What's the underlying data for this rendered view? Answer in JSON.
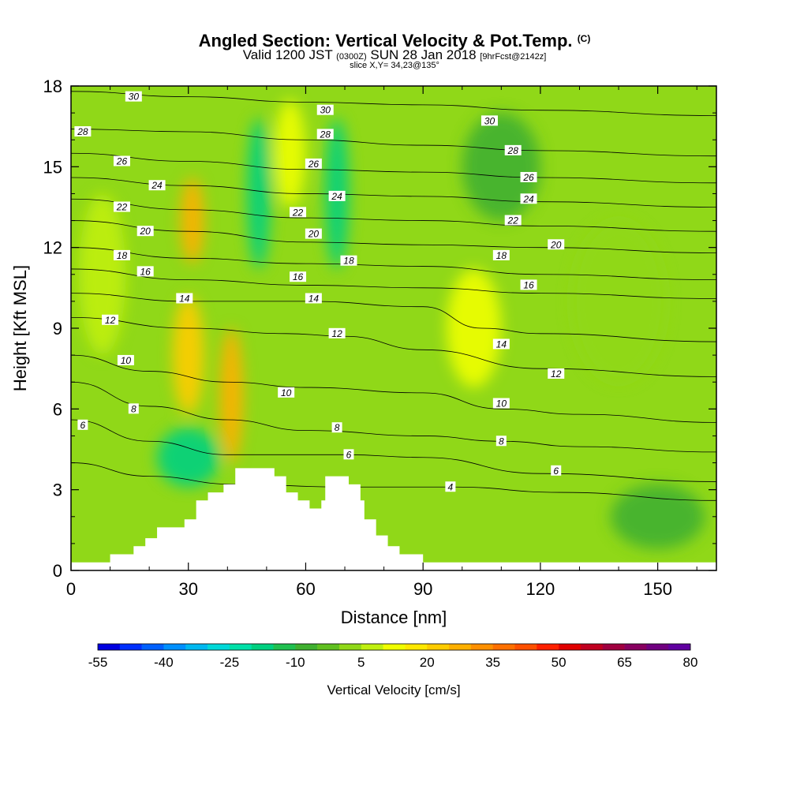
{
  "title": {
    "main": "Angled Section: Vertical Velocity & Pot.Temp.",
    "main_tag": "(C)",
    "valid_prefix": "Valid 1200 JST",
    "valid_z": "(0300Z)",
    "valid_date": "SUN 28 Jan 2018",
    "valid_fcst": "[9hrFcst@2142z]",
    "slice": "slice X,Y= 34,23@135°"
  },
  "chart_data": {
    "type": "heatmap",
    "xlabel": "Distance [nm]",
    "ylabel": "Height [Kft MSL]",
    "xlim": [
      0,
      165
    ],
    "ylim": [
      0,
      18
    ],
    "x_ticks": [
      0,
      30,
      60,
      90,
      120,
      150
    ],
    "y_ticks": [
      0,
      3,
      6,
      9,
      12,
      15,
      18
    ],
    "terrain_nm_kft": [
      [
        0,
        0.3
      ],
      [
        10,
        0.3
      ],
      [
        10,
        0.6
      ],
      [
        16,
        0.6
      ],
      [
        16,
        0.9
      ],
      [
        19,
        0.9
      ],
      [
        19,
        1.2
      ],
      [
        22,
        1.2
      ],
      [
        22,
        1.6
      ],
      [
        29,
        1.6
      ],
      [
        29,
        1.9
      ],
      [
        32,
        1.9
      ],
      [
        32,
        2.6
      ],
      [
        35,
        2.6
      ],
      [
        35,
        2.9
      ],
      [
        39,
        2.9
      ],
      [
        39,
        3.2
      ],
      [
        42,
        3.2
      ],
      [
        42,
        3.8
      ],
      [
        52,
        3.8
      ],
      [
        52,
        3.5
      ],
      [
        55,
        3.5
      ],
      [
        55,
        2.9
      ],
      [
        58,
        2.9
      ],
      [
        58,
        2.6
      ],
      [
        61,
        2.6
      ],
      [
        61,
        2.3
      ],
      [
        64,
        2.3
      ],
      [
        64,
        2.6
      ],
      [
        65,
        2.6
      ],
      [
        65,
        3.5
      ],
      [
        71,
        3.5
      ],
      [
        71,
        3.2
      ],
      [
        74,
        3.2
      ],
      [
        74,
        2.6
      ],
      [
        75,
        2.6
      ],
      [
        75,
        1.9
      ],
      [
        78,
        1.9
      ],
      [
        78,
        1.3
      ],
      [
        81,
        1.3
      ],
      [
        81,
        0.9
      ],
      [
        84,
        0.9
      ],
      [
        84,
        0.6
      ],
      [
        90,
        0.6
      ],
      [
        90,
        0.3
      ],
      [
        165,
        0.3
      ]
    ],
    "velocity_field_cms": [
      {
        "x": 31,
        "y": 13,
        "value": 28
      },
      {
        "x": 30,
        "y": 8,
        "value": 22
      },
      {
        "x": 41,
        "y": 6.5,
        "value": 25
      },
      {
        "x": 56,
        "y": 15.5,
        "value": 12
      },
      {
        "x": 103,
        "y": 9,
        "value": 10
      },
      {
        "x": 48,
        "y": 14,
        "value": -18
      },
      {
        "x": 68,
        "y": 14,
        "value": -20
      },
      {
        "x": 30,
        "y": 4.2,
        "value": -20
      },
      {
        "x": 110,
        "y": 15,
        "value": -8
      },
      {
        "x": 150,
        "y": 2,
        "value": -10
      },
      {
        "x": 8,
        "y": 11,
        "value": 8
      },
      {
        "x": 140,
        "y": 10,
        "value": 4
      }
    ],
    "isentropes_c": [
      {
        "label": "30",
        "points": [
          [
            0,
            17.8
          ],
          [
            30,
            17.6
          ],
          [
            60,
            17.4
          ],
          [
            90,
            17.3
          ],
          [
            120,
            17.1
          ],
          [
            165,
            16.9
          ]
        ]
      },
      {
        "label": "28",
        "points": [
          [
            0,
            16.4
          ],
          [
            30,
            16.3
          ],
          [
            60,
            16.0
          ],
          [
            90,
            15.8
          ],
          [
            120,
            15.6
          ],
          [
            165,
            15.4
          ]
        ]
      },
      {
        "label": "26",
        "points": [
          [
            0,
            15.5
          ],
          [
            30,
            15.2
          ],
          [
            60,
            14.9
          ],
          [
            90,
            14.8
          ],
          [
            120,
            14.6
          ],
          [
            165,
            14.4
          ]
        ]
      },
      {
        "label": "24",
        "points": [
          [
            0,
            14.6
          ],
          [
            30,
            14.3
          ],
          [
            60,
            14.0
          ],
          [
            90,
            13.9
          ],
          [
            120,
            13.7
          ],
          [
            165,
            13.5
          ]
        ]
      },
      {
        "label": "22",
        "points": [
          [
            0,
            13.8
          ],
          [
            30,
            13.4
          ],
          [
            60,
            13.1
          ],
          [
            90,
            13.0
          ],
          [
            120,
            12.8
          ],
          [
            165,
            12.6
          ]
        ]
      },
      {
        "label": "20",
        "points": [
          [
            0,
            13.0
          ],
          [
            30,
            12.6
          ],
          [
            60,
            12.2
          ],
          [
            90,
            12.1
          ],
          [
            120,
            12.0
          ],
          [
            165,
            11.8
          ]
        ]
      },
      {
        "label": "18",
        "points": [
          [
            0,
            12.0
          ],
          [
            30,
            11.6
          ],
          [
            60,
            11.4
          ],
          [
            90,
            11.3
          ],
          [
            120,
            11.0
          ],
          [
            165,
            10.8
          ]
        ]
      },
      {
        "label": "16",
        "points": [
          [
            0,
            11.2
          ],
          [
            30,
            10.8
          ],
          [
            60,
            10.6
          ],
          [
            90,
            10.5
          ],
          [
            120,
            10.3
          ],
          [
            165,
            10.1
          ]
        ]
      },
      {
        "label": "14",
        "points": [
          [
            0,
            10.3
          ],
          [
            30,
            10.0
          ],
          [
            60,
            10.0
          ],
          [
            90,
            9.8
          ],
          [
            105,
            9.0
          ],
          [
            120,
            8.8
          ],
          [
            165,
            8.5
          ]
        ]
      },
      {
        "label": "12",
        "points": [
          [
            0,
            9.4
          ],
          [
            30,
            9.0
          ],
          [
            55,
            8.8
          ],
          [
            70,
            8.7
          ],
          [
            90,
            8.2
          ],
          [
            120,
            7.5
          ],
          [
            165,
            7.2
          ]
        ]
      },
      {
        "label": "10",
        "points": [
          [
            0,
            8.0
          ],
          [
            20,
            7.4
          ],
          [
            40,
            7.0
          ],
          [
            60,
            6.8
          ],
          [
            90,
            6.6
          ],
          [
            110,
            6.0
          ],
          [
            130,
            5.8
          ],
          [
            165,
            5.5
          ]
        ]
      },
      {
        "label": "8",
        "points": [
          [
            0,
            7.0
          ],
          [
            20,
            6.1
          ],
          [
            40,
            5.6
          ],
          [
            60,
            5.2
          ],
          [
            90,
            5.0
          ],
          [
            110,
            4.8
          ],
          [
            130,
            4.6
          ],
          [
            165,
            4.4
          ]
        ]
      },
      {
        "label": "6",
        "points": [
          [
            0,
            5.6
          ],
          [
            20,
            4.8
          ],
          [
            40,
            4.3
          ],
          [
            70,
            4.3
          ],
          [
            90,
            4.2
          ],
          [
            120,
            3.6
          ],
          [
            165,
            3.3
          ]
        ]
      },
      {
        "label": "4",
        "points": [
          [
            0,
            4.0
          ],
          [
            20,
            3.5
          ],
          [
            42,
            3.2
          ],
          [
            70,
            3.1
          ],
          [
            98,
            3.1
          ],
          [
            125,
            2.9
          ],
          [
            165,
            2.6
          ]
        ]
      }
    ],
    "colorbar": {
      "label": "Vertical Velocity [cm/s]",
      "tick_labels": [
        "-55",
        "-40",
        "-25",
        "-10",
        "5",
        "20",
        "35",
        "50",
        "65",
        "80"
      ],
      "min": -55,
      "max": 80,
      "step": 5,
      "colors": [
        "#0000e0",
        "#0030ff",
        "#0060ff",
        "#0090ff",
        "#00b8f0",
        "#00d8d8",
        "#00e0a8",
        "#00d080",
        "#20c050",
        "#40b030",
        "#60c020",
        "#90d818",
        "#c0f010",
        "#f0ff00",
        "#ffe800",
        "#ffcc00",
        "#ffb000",
        "#ff9000",
        "#ff7000",
        "#ff5000",
        "#ff2000",
        "#e00000",
        "#c00020",
        "#a00040",
        "#880060",
        "#700080",
        "#6000a0"
      ]
    },
    "plot_labels": [
      {
        "text": "30",
        "x": 16,
        "y": 17.6
      },
      {
        "text": "28",
        "x": 3,
        "y": 16.3
      },
      {
        "text": "26",
        "x": 13,
        "y": 15.2
      },
      {
        "text": "24",
        "x": 22,
        "y": 14.3
      },
      {
        "text": "22",
        "x": 13,
        "y": 13.5
      },
      {
        "text": "20",
        "x": 19,
        "y": 12.6
      },
      {
        "text": "18",
        "x": 13,
        "y": 11.7
      },
      {
        "text": "16",
        "x": 19,
        "y": 11.1
      },
      {
        "text": "14",
        "x": 29,
        "y": 10.1
      },
      {
        "text": "12",
        "x": 10,
        "y": 9.3
      },
      {
        "text": "10",
        "x": 14,
        "y": 7.8
      },
      {
        "text": "8",
        "x": 16,
        "y": 6.0
      },
      {
        "text": "6",
        "x": 3,
        "y": 5.4
      },
      {
        "text": "30",
        "x": 65,
        "y": 17.1
      },
      {
        "text": "28",
        "x": 65,
        "y": 16.2
      },
      {
        "text": "26",
        "x": 62,
        "y": 15.1
      },
      {
        "text": "24",
        "x": 68,
        "y": 13.9
      },
      {
        "text": "22",
        "x": 58,
        "y": 13.3
      },
      {
        "text": "20",
        "x": 62,
        "y": 12.5
      },
      {
        "text": "18",
        "x": 71,
        "y": 11.5
      },
      {
        "text": "16",
        "x": 58,
        "y": 10.9
      },
      {
        "text": "14",
        "x": 62,
        "y": 10.1
      },
      {
        "text": "12",
        "x": 68,
        "y": 8.8
      },
      {
        "text": "10",
        "x": 55,
        "y": 6.6
      },
      {
        "text": "8",
        "x": 68,
        "y": 5.3
      },
      {
        "text": "6",
        "x": 71,
        "y": 4.3
      },
      {
        "text": "30",
        "x": 107,
        "y": 16.7
      },
      {
        "text": "28",
        "x": 113,
        "y": 15.6
      },
      {
        "text": "26",
        "x": 117,
        "y": 14.6
      },
      {
        "text": "24",
        "x": 117,
        "y": 13.8
      },
      {
        "text": "22",
        "x": 113,
        "y": 13.0
      },
      {
        "text": "20",
        "x": 124,
        "y": 12.1
      },
      {
        "text": "18",
        "x": 110,
        "y": 11.7
      },
      {
        "text": "16",
        "x": 117,
        "y": 10.6
      },
      {
        "text": "14",
        "x": 110,
        "y": 8.4
      },
      {
        "text": "12",
        "x": 124,
        "y": 7.3
      },
      {
        "text": "10",
        "x": 110,
        "y": 6.2
      },
      {
        "text": "8",
        "x": 110,
        "y": 4.8
      },
      {
        "text": "6",
        "x": 124,
        "y": 3.7
      },
      {
        "text": "4",
        "x": 97,
        "y": 3.1
      }
    ]
  }
}
